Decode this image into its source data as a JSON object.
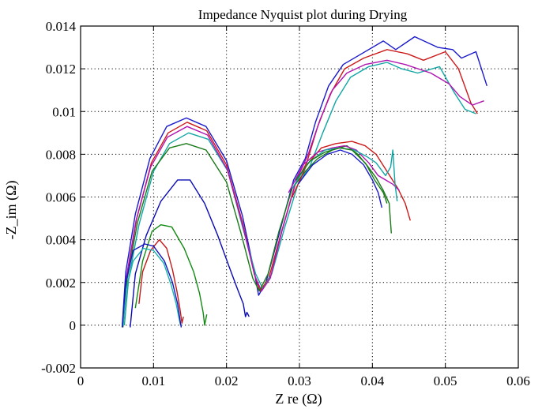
{
  "chart_data": {
    "type": "line",
    "title": "Impedance Nyquist plot during Drying",
    "xlabel": "Z  re (Ω)",
    "ylabel": "-Z_im (Ω)",
    "xlim": [
      0,
      0.06
    ],
    "ylim": [
      -0.002,
      0.014
    ],
    "xticks": [
      0,
      0.01,
      0.02,
      0.03,
      0.04,
      0.05,
      0.06
    ],
    "xtick_labels": [
      "0",
      "0.01",
      "0.02",
      "0.03",
      "0.04",
      "0.05",
      "0.06"
    ],
    "yticks": [
      -0.002,
      0,
      0.002,
      0.004,
      0.006,
      0.008,
      0.01,
      0.012,
      0.014
    ],
    "ytick_labels": [
      "-0.002",
      "0",
      "0.002",
      "0.004",
      "0.006",
      "0.008",
      "0.01",
      "0.012",
      "0.014"
    ],
    "grid": true,
    "series": [
      {
        "color": "#1a1acc",
        "points": [
          [
            0.0057,
            -0.0001
          ],
          [
            0.0062,
            0.0025
          ],
          [
            0.0075,
            0.0052
          ],
          [
            0.0095,
            0.0078
          ],
          [
            0.0118,
            0.0093
          ],
          [
            0.0145,
            0.0097
          ],
          [
            0.0172,
            0.0093
          ],
          [
            0.02,
            0.0077
          ],
          [
            0.0222,
            0.0051
          ],
          [
            0.0238,
            0.0025
          ],
          [
            0.0244,
            0.0014
          ],
          [
            0.0254,
            0.002
          ],
          [
            0.027,
            0.004
          ],
          [
            0.0292,
            0.0068
          ],
          [
            0.0308,
            0.0078
          ],
          [
            0.0322,
            0.0095
          ],
          [
            0.034,
            0.0112
          ],
          [
            0.036,
            0.0122
          ],
          [
            0.0385,
            0.0127
          ],
          [
            0.0415,
            0.0133
          ],
          [
            0.0432,
            0.0129
          ],
          [
            0.0458,
            0.0135
          ],
          [
            0.049,
            0.013
          ],
          [
            0.051,
            0.0129
          ],
          [
            0.0522,
            0.0125
          ],
          [
            0.0542,
            0.0128
          ],
          [
            0.0557,
            0.0112
          ]
        ]
      },
      {
        "color": "#cc1a1a",
        "points": [
          [
            0.0058,
            0.0
          ],
          [
            0.0064,
            0.0024
          ],
          [
            0.0077,
            0.005
          ],
          [
            0.0097,
            0.0076
          ],
          [
            0.012,
            0.009
          ],
          [
            0.0146,
            0.0095
          ],
          [
            0.0173,
            0.0091
          ],
          [
            0.02,
            0.0075
          ],
          [
            0.0222,
            0.0048
          ],
          [
            0.0238,
            0.0024
          ],
          [
            0.0246,
            0.0016
          ],
          [
            0.0258,
            0.0022
          ],
          [
            0.0274,
            0.0042
          ],
          [
            0.0294,
            0.0066
          ],
          [
            0.031,
            0.0076
          ],
          [
            0.0325,
            0.0093
          ],
          [
            0.0342,
            0.0108
          ],
          [
            0.0362,
            0.012
          ],
          [
            0.0388,
            0.0125
          ],
          [
            0.042,
            0.0129
          ],
          [
            0.0448,
            0.0127
          ],
          [
            0.047,
            0.0124
          ],
          [
            0.05,
            0.0128
          ],
          [
            0.0518,
            0.012
          ],
          [
            0.0535,
            0.0104
          ],
          [
            0.0544,
            0.0099
          ]
        ]
      },
      {
        "color": "#12a5a5",
        "points": [
          [
            0.006,
            0.0
          ],
          [
            0.0066,
            0.0022
          ],
          [
            0.008,
            0.0047
          ],
          [
            0.01,
            0.0072
          ],
          [
            0.0122,
            0.0085
          ],
          [
            0.0148,
            0.009
          ],
          [
            0.0175,
            0.0087
          ],
          [
            0.0202,
            0.0072
          ],
          [
            0.0222,
            0.0046
          ],
          [
            0.024,
            0.0024
          ],
          [
            0.025,
            0.0017
          ],
          [
            0.0262,
            0.0024
          ],
          [
            0.028,
            0.0046
          ],
          [
            0.0298,
            0.0066
          ],
          [
            0.0315,
            0.0075
          ],
          [
            0.0332,
            0.009
          ],
          [
            0.035,
            0.0105
          ],
          [
            0.037,
            0.0116
          ],
          [
            0.0395,
            0.0121
          ],
          [
            0.042,
            0.0123
          ],
          [
            0.044,
            0.012
          ],
          [
            0.0462,
            0.0118
          ],
          [
            0.0492,
            0.0121
          ],
          [
            0.0512,
            0.0109
          ],
          [
            0.0527,
            0.0101
          ],
          [
            0.0542,
            0.0099
          ]
        ]
      },
      {
        "color": "#b013b0",
        "points": [
          [
            0.0058,
            0.0
          ],
          [
            0.0063,
            0.0023
          ],
          [
            0.0076,
            0.0049
          ],
          [
            0.0096,
            0.0074
          ],
          [
            0.0119,
            0.0088
          ],
          [
            0.0146,
            0.0093
          ],
          [
            0.0174,
            0.0089
          ],
          [
            0.0201,
            0.0073
          ],
          [
            0.0222,
            0.0047
          ],
          [
            0.0239,
            0.0023
          ],
          [
            0.0248,
            0.0016
          ],
          [
            0.026,
            0.0022
          ],
          [
            0.0276,
            0.0044
          ],
          [
            0.0296,
            0.0068
          ],
          [
            0.0312,
            0.008
          ],
          [
            0.0328,
            0.0096
          ],
          [
            0.0345,
            0.011
          ],
          [
            0.0365,
            0.0118
          ],
          [
            0.039,
            0.0122
          ],
          [
            0.042,
            0.0124
          ],
          [
            0.0445,
            0.0122
          ],
          [
            0.048,
            0.0118
          ],
          [
            0.0505,
            0.0113
          ],
          [
            0.052,
            0.0107
          ],
          [
            0.0537,
            0.0103
          ],
          [
            0.0553,
            0.0105
          ]
        ]
      },
      {
        "color": "#1a7a1a",
        "points": [
          [
            0.0058,
            -0.0001
          ],
          [
            0.0064,
            0.0022
          ],
          [
            0.0078,
            0.0048
          ],
          [
            0.0098,
            0.0072
          ],
          [
            0.0122,
            0.0083
          ],
          [
            0.0145,
            0.0085
          ],
          [
            0.0172,
            0.0082
          ],
          [
            0.02,
            0.0067
          ],
          [
            0.022,
            0.0043
          ],
          [
            0.0236,
            0.0022
          ],
          [
            0.0245,
            0.0016
          ],
          [
            0.0257,
            0.0024
          ],
          [
            0.0272,
            0.0044
          ],
          [
            0.029,
            0.0064
          ],
          [
            0.0308,
            0.0072
          ],
          [
            0.0325,
            0.0078
          ],
          [
            0.0345,
            0.0082
          ],
          [
            0.0365,
            0.0084
          ],
          [
            0.038,
            0.008
          ],
          [
            0.0392,
            0.0075
          ],
          [
            0.0403,
            0.0068
          ],
          [
            0.0415,
            0.0062
          ],
          [
            0.042,
            0.0057
          ]
        ]
      },
      {
        "color": "#0a0ab5",
        "points": [
          [
            0.0068,
            -0.0001
          ],
          [
            0.0075,
            0.0024
          ],
          [
            0.009,
            0.0042
          ],
          [
            0.011,
            0.0058
          ],
          [
            0.0133,
            0.0068
          ],
          [
            0.015,
            0.0068
          ],
          [
            0.017,
            0.0057
          ],
          [
            0.0188,
            0.0042
          ],
          [
            0.0203,
            0.0028
          ],
          [
            0.0215,
            0.0017
          ],
          [
            0.0223,
            0.001
          ],
          [
            0.0226,
            0.0004
          ],
          [
            0.0228,
            0.0006
          ],
          [
            0.0231,
            0.0004
          ]
        ]
      },
      {
        "color": "#c41818",
        "points": [
          [
            0.008,
            0.001
          ],
          [
            0.0085,
            0.0025
          ],
          [
            0.0096,
            0.0035
          ],
          [
            0.0108,
            0.004
          ],
          [
            0.0118,
            0.0036
          ],
          [
            0.0126,
            0.0026
          ],
          [
            0.0132,
            0.0016
          ],
          [
            0.0136,
            0.0008
          ],
          [
            0.0139,
            0.0001
          ],
          [
            0.0141,
            0.0004
          ]
        ]
      },
      {
        "color": "#128a12",
        "points": [
          [
            0.0075,
            0.0008
          ],
          [
            0.0085,
            0.003
          ],
          [
            0.0098,
            0.0044
          ],
          [
            0.011,
            0.0047
          ],
          [
            0.0125,
            0.0046
          ],
          [
            0.0142,
            0.0036
          ],
          [
            0.0155,
            0.0025
          ],
          [
            0.0163,
            0.0015
          ],
          [
            0.0168,
            0.0006
          ],
          [
            0.017,
            0.0
          ],
          [
            0.0173,
            0.0005
          ]
        ]
      },
      {
        "color": "#1ab0b0",
        "points": [
          [
            0.0058,
            0.0
          ],
          [
            0.0062,
            0.0016
          ],
          [
            0.0072,
            0.003
          ],
          [
            0.0086,
            0.0036
          ],
          [
            0.01,
            0.0035
          ],
          [
            0.0114,
            0.0029
          ],
          [
            0.0124,
            0.0019
          ],
          [
            0.0131,
            0.001
          ],
          [
            0.0135,
            0.0003
          ],
          [
            0.0137,
            0.0
          ]
        ]
      },
      {
        "color": "#1616c0",
        "points": [
          [
            0.0057,
            -0.0001
          ],
          [
            0.0062,
            0.002
          ],
          [
            0.0072,
            0.0035
          ],
          [
            0.0088,
            0.0038
          ],
          [
            0.01,
            0.0037
          ],
          [
            0.0115,
            0.003
          ],
          [
            0.0126,
            0.002
          ],
          [
            0.0133,
            0.001
          ],
          [
            0.0137,
            0.0001
          ],
          [
            0.0138,
            -0.0001
          ]
        ]
      },
      {
        "color": "#cc1a1a",
        "points": [
          [
            0.029,
            0.006
          ],
          [
            0.031,
            0.0075
          ],
          [
            0.033,
            0.0083
          ],
          [
            0.035,
            0.0085
          ],
          [
            0.0372,
            0.0086
          ],
          [
            0.039,
            0.0084
          ],
          [
            0.0405,
            0.008
          ],
          [
            0.042,
            0.0072
          ],
          [
            0.0435,
            0.0064
          ],
          [
            0.0445,
            0.0057
          ],
          [
            0.0452,
            0.0049
          ]
        ]
      },
      {
        "color": "#b013b0",
        "points": [
          [
            0.0285,
            0.0062
          ],
          [
            0.0305,
            0.0075
          ],
          [
            0.0325,
            0.0081
          ],
          [
            0.0345,
            0.0083
          ],
          [
            0.0362,
            0.0084
          ],
          [
            0.0378,
            0.0082
          ],
          [
            0.0395,
            0.0076
          ],
          [
            0.0408,
            0.007
          ],
          [
            0.0418,
            0.0068
          ],
          [
            0.0428,
            0.0066
          ],
          [
            0.0437,
            0.0063
          ]
        ]
      },
      {
        "color": "#12a5a5",
        "points": [
          [
            0.029,
            0.0064
          ],
          [
            0.0312,
            0.0076
          ],
          [
            0.0335,
            0.0082
          ],
          [
            0.0355,
            0.0083
          ],
          [
            0.0375,
            0.0082
          ],
          [
            0.0392,
            0.0079
          ],
          [
            0.0405,
            0.0076
          ],
          [
            0.0418,
            0.007
          ],
          [
            0.0425,
            0.0074
          ],
          [
            0.0428,
            0.0082
          ],
          [
            0.0431,
            0.0066
          ],
          [
            0.0434,
            0.0058
          ]
        ]
      },
      {
        "color": "#1a7a1a",
        "points": [
          [
            0.0295,
            0.0068
          ],
          [
            0.0315,
            0.0077
          ],
          [
            0.0335,
            0.0081
          ],
          [
            0.0355,
            0.0083
          ],
          [
            0.0372,
            0.0082
          ],
          [
            0.039,
            0.0076
          ],
          [
            0.0405,
            0.0069
          ],
          [
            0.0415,
            0.0063
          ],
          [
            0.0423,
            0.0057
          ],
          [
            0.0426,
            0.0043
          ]
        ]
      },
      {
        "color": "#1a1acc",
        "points": [
          [
            0.0298,
            0.0066
          ],
          [
            0.0318,
            0.0075
          ],
          [
            0.0338,
            0.008
          ],
          [
            0.0356,
            0.0082
          ],
          [
            0.0372,
            0.008
          ],
          [
            0.0388,
            0.0075
          ],
          [
            0.04,
            0.0068
          ],
          [
            0.0408,
            0.0062
          ],
          [
            0.0413,
            0.0055
          ]
        ]
      }
    ]
  }
}
